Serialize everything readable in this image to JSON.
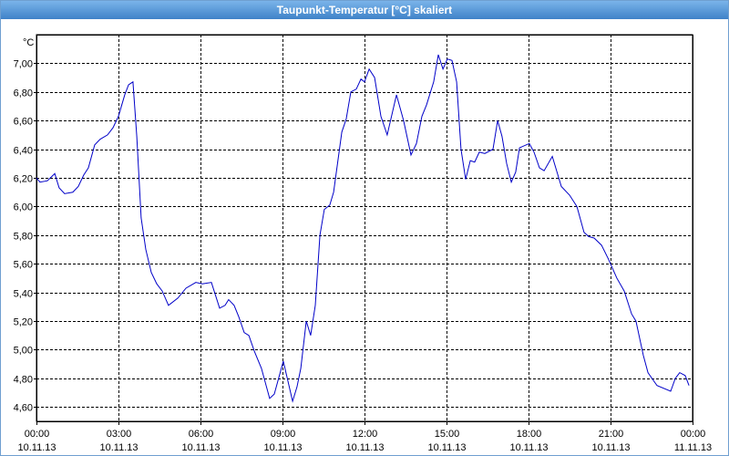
{
  "chart_data": {
    "type": "line",
    "title": "Taupunkt-Temperatur [°C] skaliert",
    "ylabel": "°C",
    "color": "#0000c8",
    "grid": true,
    "xlim": [
      0,
      24
    ],
    "ylim": [
      4.5,
      7.2
    ],
    "xticks": [
      {
        "value": 0,
        "label": "00:00",
        "date": "10.11.13"
      },
      {
        "value": 3,
        "label": "03:00",
        "date": "10.11.13"
      },
      {
        "value": 6,
        "label": "06:00",
        "date": "10.11.13"
      },
      {
        "value": 9,
        "label": "09:00",
        "date": "10.11.13"
      },
      {
        "value": 12,
        "label": "12:00",
        "date": "10.11.13"
      },
      {
        "value": 15,
        "label": "15:00",
        "date": "10.11.13"
      },
      {
        "value": 18,
        "label": "18:00",
        "date": "10.11.13"
      },
      {
        "value": 21,
        "label": "21:00",
        "date": "10.11.13"
      },
      {
        "value": 24,
        "label": "00:00",
        "date": "11.11.13"
      }
    ],
    "yticks": [
      {
        "value": 4.6,
        "label": "4,60"
      },
      {
        "value": 4.8,
        "label": "4,80"
      },
      {
        "value": 5.0,
        "label": "5,00"
      },
      {
        "value": 5.2,
        "label": "5,20"
      },
      {
        "value": 5.4,
        "label": "5,40"
      },
      {
        "value": 5.6,
        "label": "5,60"
      },
      {
        "value": 5.8,
        "label": "5,80"
      },
      {
        "value": 6.0,
        "label": "6,00"
      },
      {
        "value": 6.2,
        "label": "6,20"
      },
      {
        "value": 6.4,
        "label": "6,40"
      },
      {
        "value": 6.6,
        "label": "6,60"
      },
      {
        "value": 6.8,
        "label": "6,80"
      },
      {
        "value": 7.0,
        "label": "7,00"
      }
    ],
    "x": [
      0,
      0.13,
      0.4,
      0.67,
      0.83,
      1.03,
      1.33,
      1.53,
      1.73,
      1.9,
      2.13,
      2.33,
      2.6,
      2.8,
      3,
      3.23,
      3.37,
      3.53,
      3.67,
      3.83,
      4,
      4.2,
      4.4,
      4.6,
      4.83,
      5.17,
      5.47,
      5.83,
      6.07,
      6.4,
      6.7,
      6.9,
      7.03,
      7.23,
      7.4,
      7.6,
      7.77,
      7.97,
      8.23,
      8.53,
      8.7,
      9.03,
      9.37,
      9.53,
      9.67,
      9.87,
      10.03,
      10.2,
      10.37,
      10.53,
      10.73,
      10.87,
      11.17,
      11.33,
      11.5,
      11.7,
      11.87,
      12,
      12.17,
      12.37,
      12.6,
      12.83,
      13.17,
      13.43,
      13.7,
      13.9,
      14.1,
      14.27,
      14.53,
      14.7,
      14.87,
      15.03,
      15.2,
      15.37,
      15.53,
      15.7,
      15.87,
      16.03,
      16.2,
      16.4,
      16.7,
      16.87,
      17.03,
      17.2,
      17.37,
      17.53,
      17.67,
      18.03,
      18.2,
      18.4,
      18.57,
      18.87,
      19.2,
      19.5,
      19.77,
      20.03,
      20.2,
      20.4,
      20.67,
      20.93,
      21.23,
      21.5,
      21.77,
      21.93,
      22.2,
      22.37,
      22.7,
      23.2,
      23.37,
      23.53,
      23.73,
      23.87
    ],
    "values": [
      6.2,
      6.17,
      6.18,
      6.23,
      6.13,
      6.09,
      6.1,
      6.14,
      6.22,
      6.27,
      6.43,
      6.47,
      6.5,
      6.55,
      6.63,
      6.78,
      6.85,
      6.87,
      6.49,
      5.92,
      5.7,
      5.54,
      5.46,
      5.41,
      5.31,
      5.36,
      5.43,
      5.47,
      5.46,
      5.47,
      5.29,
      5.31,
      5.35,
      5.31,
      5.23,
      5.12,
      5.1,
      4.99,
      4.87,
      4.66,
      4.69,
      4.92,
      4.64,
      4.74,
      4.87,
      5.2,
      5.1,
      5.31,
      5.8,
      5.98,
      6.01,
      6.1,
      6.52,
      6.61,
      6.8,
      6.82,
      6.89,
      6.87,
      6.96,
      6.9,
      6.63,
      6.5,
      6.78,
      6.6,
      6.36,
      6.44,
      6.63,
      6.71,
      6.87,
      7.06,
      6.96,
      7.03,
      7.02,
      6.87,
      6.4,
      6.19,
      6.32,
      6.31,
      6.38,
      6.37,
      6.4,
      6.6,
      6.49,
      6.3,
      6.17,
      6.24,
      6.41,
      6.44,
      6.38,
      6.27,
      6.25,
      6.35,
      6.14,
      6.08,
      6,
      5.82,
      5.79,
      5.78,
      5.73,
      5.63,
      5.5,
      5.41,
      5.25,
      5.2,
      4.96,
      4.84,
      4.75,
      4.71,
      4.8,
      4.84,
      4.82,
      4.75
    ]
  }
}
